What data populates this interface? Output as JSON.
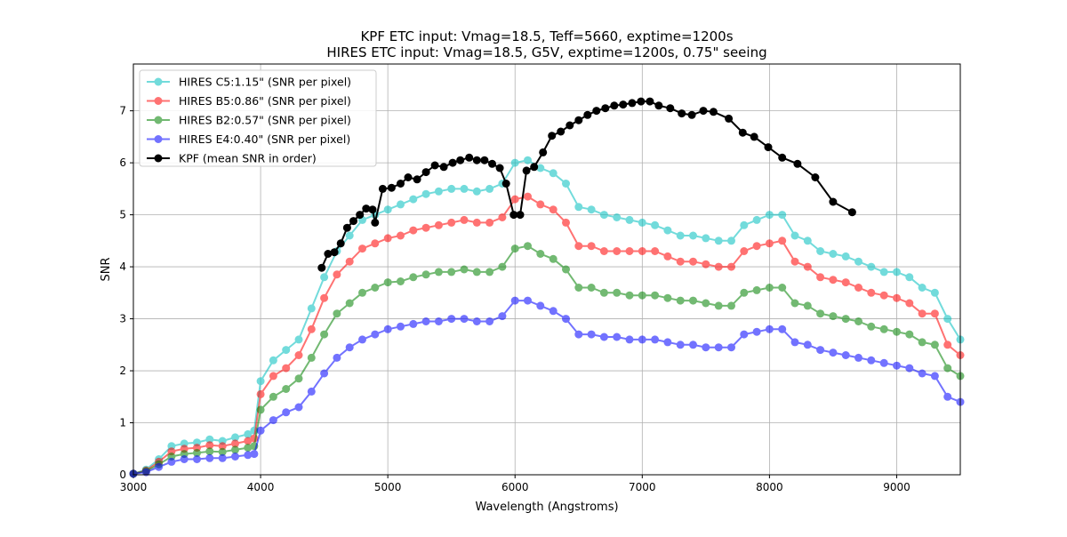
{
  "chart_data": {
    "type": "line",
    "title_line1": "KPF ETC input: Vmag=18.5, Teff=5660, exptime=1200s",
    "title_line2": "HIRES ETC input: Vmag=18.5, G5V, exptime=1200s, 0.75\" seeing",
    "xlabel": "Wavelength (Angstroms)",
    "ylabel": "SNR",
    "xlim": [
      3000,
      9500
    ],
    "ylim": [
      0,
      7.9
    ],
    "xticks": [
      3000,
      4000,
      5000,
      6000,
      7000,
      8000,
      9000
    ],
    "yticks": [
      0,
      1,
      2,
      3,
      4,
      5,
      6,
      7
    ],
    "grid": true,
    "legend_position": "top-left",
    "series": [
      {
        "name": "HIRES C5:1.15\" (SNR per pixel)",
        "color": "#00bfbf",
        "opacity": 0.55,
        "x": [
          3000,
          3100,
          3200,
          3300,
          3400,
          3500,
          3600,
          3700,
          3800,
          3900,
          3950,
          4000,
          4100,
          4200,
          4300,
          4400,
          4500,
          4600,
          4700,
          4800,
          4900,
          5000,
          5100,
          5200,
          5300,
          5400,
          5500,
          5600,
          5700,
          5800,
          5900,
          6000,
          6100,
          6200,
          6300,
          6400,
          6500,
          6600,
          6700,
          6800,
          6900,
          7000,
          7100,
          7200,
          7300,
          7400,
          7500,
          7600,
          7700,
          7800,
          7900,
          8000,
          8100,
          8200,
          8300,
          8400,
          8500,
          8600,
          8700,
          8800,
          8900,
          9000,
          9100,
          9200,
          9300,
          9400,
          9500
        ],
        "values": [
          0.02,
          0.1,
          0.3,
          0.55,
          0.6,
          0.62,
          0.68,
          0.65,
          0.72,
          0.78,
          0.85,
          1.8,
          2.2,
          2.4,
          2.6,
          3.2,
          3.8,
          4.3,
          4.6,
          4.9,
          5.0,
          5.1,
          5.2,
          5.3,
          5.4,
          5.45,
          5.5,
          5.5,
          5.45,
          5.5,
          5.6,
          6.0,
          6.05,
          5.9,
          5.8,
          5.6,
          5.15,
          5.1,
          5.0,
          4.95,
          4.9,
          4.85,
          4.8,
          4.7,
          4.6,
          4.6,
          4.55,
          4.5,
          4.5,
          4.8,
          4.9,
          5.0,
          5.0,
          4.6,
          4.5,
          4.3,
          4.25,
          4.2,
          4.1,
          4.0,
          3.9,
          3.9,
          3.8,
          3.6,
          3.5,
          3.0,
          2.6
        ]
      },
      {
        "name": "HIRES B5:0.86\" (SNR per pixel)",
        "color": "#ff0000",
        "opacity": 0.55,
        "x": [
          3000,
          3100,
          3200,
          3300,
          3400,
          3500,
          3600,
          3700,
          3800,
          3900,
          3950,
          4000,
          4100,
          4200,
          4300,
          4400,
          4500,
          4600,
          4700,
          4800,
          4900,
          5000,
          5100,
          5200,
          5300,
          5400,
          5500,
          5600,
          5700,
          5800,
          5900,
          6000,
          6100,
          6200,
          6300,
          6400,
          6500,
          6600,
          6700,
          6800,
          6900,
          7000,
          7100,
          7200,
          7300,
          7400,
          7500,
          7600,
          7700,
          7800,
          7900,
          8000,
          8100,
          8200,
          8300,
          8400,
          8500,
          8600,
          8700,
          8800,
          8900,
          9000,
          9100,
          9200,
          9300,
          9400,
          9500
        ],
        "values": [
          0.02,
          0.08,
          0.25,
          0.45,
          0.5,
          0.52,
          0.57,
          0.55,
          0.6,
          0.65,
          0.7,
          1.55,
          1.9,
          2.05,
          2.3,
          2.8,
          3.4,
          3.85,
          4.1,
          4.35,
          4.45,
          4.55,
          4.6,
          4.7,
          4.75,
          4.8,
          4.85,
          4.9,
          4.85,
          4.85,
          4.95,
          5.3,
          5.35,
          5.2,
          5.1,
          4.85,
          4.4,
          4.4,
          4.3,
          4.3,
          4.3,
          4.3,
          4.3,
          4.2,
          4.1,
          4.1,
          4.05,
          4.0,
          4.0,
          4.3,
          4.4,
          4.45,
          4.5,
          4.1,
          4.0,
          3.8,
          3.75,
          3.7,
          3.6,
          3.5,
          3.45,
          3.4,
          3.3,
          3.1,
          3.1,
          2.5,
          2.3
        ]
      },
      {
        "name": "HIRES B2:0.57\" (SNR per pixel)",
        "color": "#008000",
        "opacity": 0.55,
        "x": [
          3000,
          3100,
          3200,
          3300,
          3400,
          3500,
          3600,
          3700,
          3800,
          3900,
          3950,
          4000,
          4100,
          4200,
          4300,
          4400,
          4500,
          4600,
          4700,
          4800,
          4900,
          5000,
          5100,
          5200,
          5300,
          5400,
          5500,
          5600,
          5700,
          5800,
          5900,
          6000,
          6100,
          6200,
          6300,
          6400,
          6500,
          6600,
          6700,
          6800,
          6900,
          7000,
          7100,
          7200,
          7300,
          7400,
          7500,
          7600,
          7700,
          7800,
          7900,
          8000,
          8100,
          8200,
          8300,
          8400,
          8500,
          8600,
          8700,
          8800,
          8900,
          9000,
          9100,
          9200,
          9300,
          9400,
          9500
        ],
        "values": [
          0.02,
          0.07,
          0.2,
          0.35,
          0.4,
          0.42,
          0.45,
          0.44,
          0.48,
          0.52,
          0.55,
          1.25,
          1.5,
          1.65,
          1.85,
          2.25,
          2.7,
          3.1,
          3.3,
          3.5,
          3.6,
          3.7,
          3.72,
          3.8,
          3.85,
          3.9,
          3.9,
          3.95,
          3.9,
          3.9,
          4.0,
          4.35,
          4.4,
          4.25,
          4.15,
          3.95,
          3.6,
          3.6,
          3.5,
          3.5,
          3.45,
          3.45,
          3.45,
          3.4,
          3.35,
          3.35,
          3.3,
          3.25,
          3.25,
          3.5,
          3.55,
          3.6,
          3.6,
          3.3,
          3.25,
          3.1,
          3.05,
          3.0,
          2.95,
          2.85,
          2.8,
          2.75,
          2.7,
          2.55,
          2.5,
          2.05,
          1.9
        ]
      },
      {
        "name": "HIRES E4:0.40\" (SNR per pixel)",
        "color": "#0000ff",
        "opacity": 0.55,
        "x": [
          3000,
          3100,
          3200,
          3300,
          3400,
          3500,
          3600,
          3700,
          3800,
          3900,
          3950,
          4000,
          4100,
          4200,
          4300,
          4400,
          4500,
          4600,
          4700,
          4800,
          4900,
          5000,
          5100,
          5200,
          5300,
          5400,
          5500,
          5600,
          5700,
          5800,
          5900,
          6000,
          6100,
          6200,
          6300,
          6400,
          6500,
          6600,
          6700,
          6800,
          6900,
          7000,
          7100,
          7200,
          7300,
          7400,
          7500,
          7600,
          7700,
          7800,
          7900,
          8000,
          8100,
          8200,
          8300,
          8400,
          8500,
          8600,
          8700,
          8800,
          8900,
          9000,
          9100,
          9200,
          9300,
          9400,
          9500
        ],
        "values": [
          0.02,
          0.05,
          0.15,
          0.25,
          0.3,
          0.3,
          0.32,
          0.32,
          0.35,
          0.38,
          0.4,
          0.85,
          1.05,
          1.2,
          1.3,
          1.6,
          1.95,
          2.25,
          2.45,
          2.6,
          2.7,
          2.8,
          2.85,
          2.9,
          2.95,
          2.95,
          3.0,
          3.0,
          2.95,
          2.95,
          3.05,
          3.35,
          3.35,
          3.25,
          3.15,
          3.0,
          2.7,
          2.7,
          2.65,
          2.65,
          2.6,
          2.6,
          2.6,
          2.55,
          2.5,
          2.5,
          2.45,
          2.45,
          2.45,
          2.7,
          2.75,
          2.8,
          2.8,
          2.55,
          2.5,
          2.4,
          2.35,
          2.3,
          2.25,
          2.2,
          2.15,
          2.1,
          2.05,
          1.95,
          1.9,
          1.5,
          1.4
        ]
      },
      {
        "name": "KPF (mean SNR in order)",
        "color": "#000000",
        "opacity": 1,
        "x": [
          4480,
          4530,
          4580,
          4630,
          4680,
          4730,
          4780,
          4830,
          4880,
          4900,
          4960,
          5030,
          5100,
          5160,
          5230,
          5300,
          5370,
          5440,
          5510,
          5570,
          5640,
          5700,
          5760,
          5820,
          5880,
          5930,
          5990,
          6040,
          6090,
          6150,
          6220,
          6290,
          6360,
          6430,
          6500,
          6570,
          6640,
          6710,
          6780,
          6850,
          6920,
          6990,
          7060,
          7130,
          7220,
          7310,
          7390,
          7480,
          7560,
          7680,
          7790,
          7880,
          7990,
          8100,
          8220,
          8360,
          8500,
          8650
        ],
        "values": [
          3.98,
          4.25,
          4.28,
          4.45,
          4.75,
          4.88,
          5.0,
          5.12,
          5.1,
          4.85,
          5.5,
          5.52,
          5.6,
          5.72,
          5.68,
          5.82,
          5.95,
          5.92,
          6.0,
          6.05,
          6.1,
          6.05,
          6.05,
          5.98,
          5.9,
          5.6,
          5.0,
          5.0,
          5.85,
          5.92,
          6.2,
          6.52,
          6.6,
          6.72,
          6.82,
          6.92,
          7.0,
          7.05,
          7.1,
          7.12,
          7.15,
          7.18,
          7.18,
          7.1,
          7.05,
          6.95,
          6.92,
          7.0,
          6.98,
          6.85,
          6.58,
          6.5,
          6.3,
          6.1,
          5.98,
          5.72,
          5.25,
          5.05
        ]
      }
    ]
  }
}
